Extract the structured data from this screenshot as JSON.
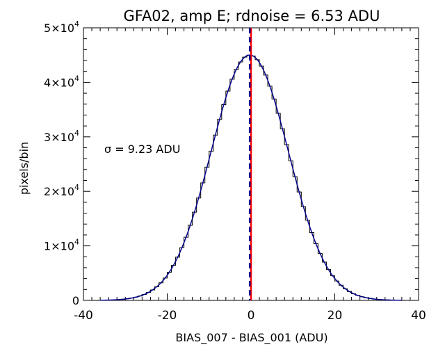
{
  "chart_data": {
    "type": "line",
    "title": "GFA02, amp E; rdnoise = 6.53 ADU",
    "xlabel": "BIAS_007 - BIAS_001 (ADU)",
    "ylabel": "pixels/bin",
    "annotation": "σ = 9.23 ADU",
    "xlim": [
      -40,
      40
    ],
    "ylim": [
      0,
      50000
    ],
    "x_ticks": [
      {
        "value": -40,
        "label": "-40"
      },
      {
        "value": -20,
        "label": "-20"
      },
      {
        "value": 0,
        "label": "0"
      },
      {
        "value": 20,
        "label": "20"
      },
      {
        "value": 40,
        "label": "40"
      }
    ],
    "y_ticks": [
      {
        "value": 0,
        "label": "0"
      },
      {
        "value": 10000,
        "label": "1×10",
        "exp": "4"
      },
      {
        "value": 20000,
        "label": "2×10",
        "exp": "4"
      },
      {
        "value": 30000,
        "label": "3×10",
        "exp": "4"
      },
      {
        "value": 40000,
        "label": "4×10",
        "exp": "4"
      },
      {
        "value": 50000,
        "label": "5×10",
        "exp": "4"
      }
    ],
    "histogram": {
      "x_range": [
        -36,
        36
      ],
      "bin_width": 1,
      "peak": 45000,
      "center": -0.3,
      "sigma": 9.23,
      "color": "#000000"
    },
    "fit": {
      "peak": 45000,
      "center": -0.3,
      "sigma": 9.23,
      "color": "#00008b"
    },
    "vertical_lines": [
      {
        "x": 0,
        "style": "solid",
        "color": "#ff0000"
      },
      {
        "x": -0.3,
        "style": "dashed",
        "color": "#00008b"
      }
    ]
  }
}
